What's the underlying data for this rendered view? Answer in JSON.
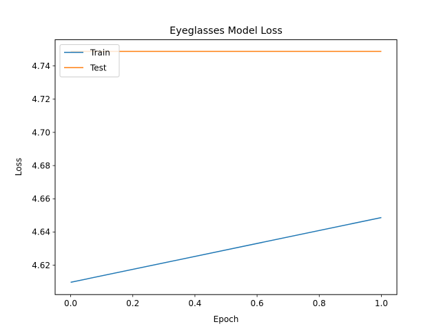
{
  "chart_data": {
    "type": "line",
    "title": "Eyeglasses Model Loss",
    "xlabel": "Epoch",
    "ylabel": "Loss",
    "x": [
      0.0,
      1.0
    ],
    "xlim": [
      -0.05,
      1.05
    ],
    "ylim": [
      4.6023,
      4.7558
    ],
    "xticks": [
      "0.0",
      "0.2",
      "0.4",
      "0.6",
      "0.8",
      "1.0"
    ],
    "yticks": [
      "4.62",
      "4.64",
      "4.66",
      "4.68",
      "4.70",
      "4.72",
      "4.74"
    ],
    "grid": false,
    "legend_position": "upper left",
    "series": [
      {
        "name": "Train",
        "values": [
          4.6097,
          4.6487
        ],
        "color": "#1f77b4"
      },
      {
        "name": "Test",
        "values": [
          4.7488,
          4.7488
        ],
        "color": "#ff7f0e"
      }
    ]
  }
}
